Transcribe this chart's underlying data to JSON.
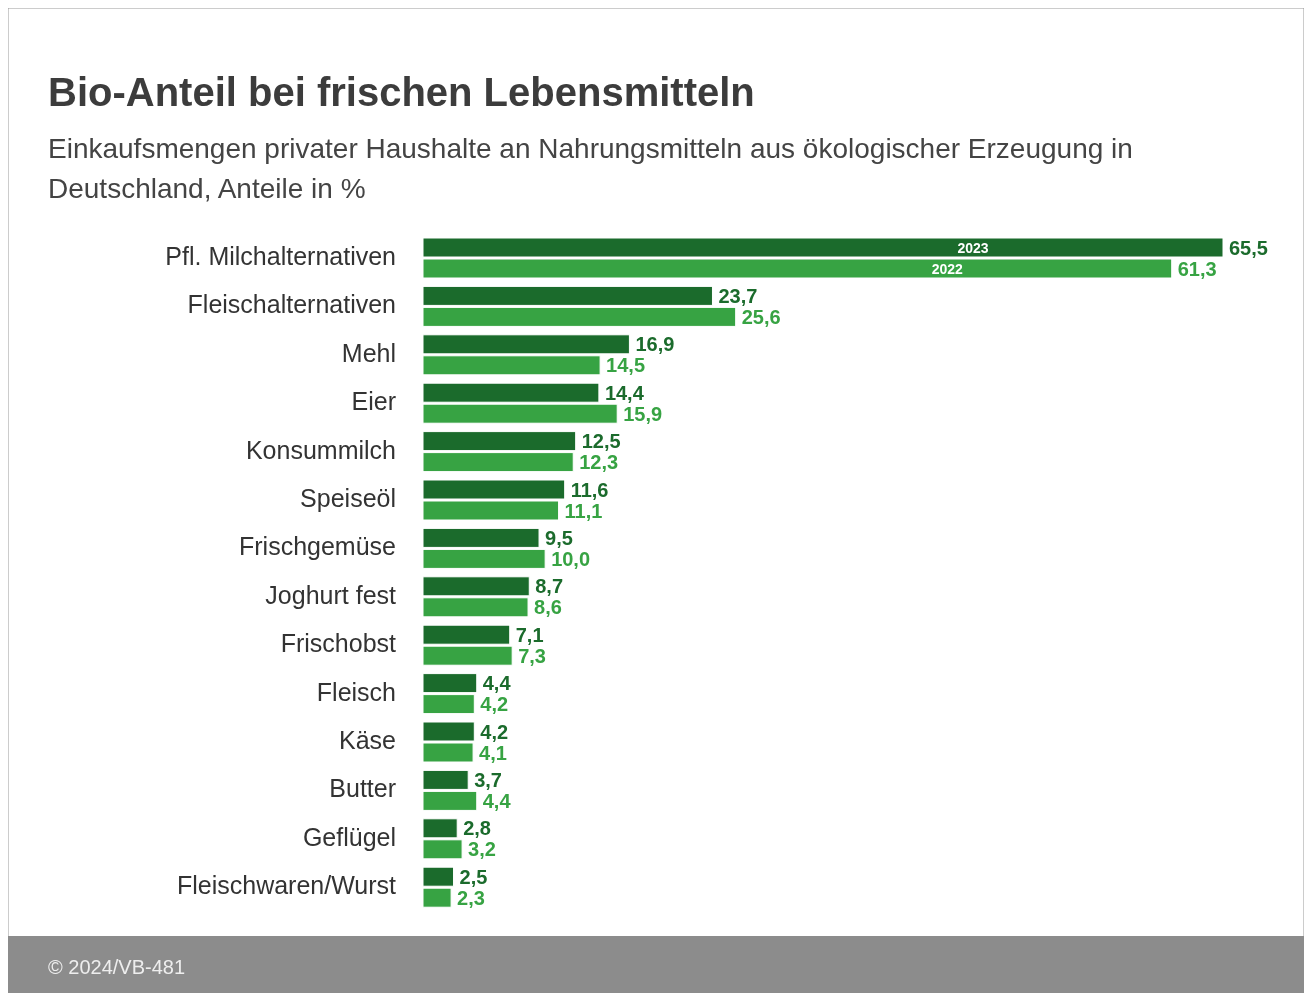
{
  "chart_data": {
    "type": "bar",
    "orientation": "horizontal",
    "title": "Bio-Anteil bei frischen Lebensmitteln",
    "subtitle": "Einkaufsmengen privater Haushalte an Nahrungsmitteln aus ökologischer Erzeugung in Deutschland, Anteile in %",
    "categories": [
      "Pfl. Milchalternativen",
      "Fleischalternativen",
      "Mehl",
      "Eier",
      "Konsummilch",
      "Speiseöl",
      "Frischgemüse",
      "Joghurt fest",
      "Frischobst",
      "Fleisch",
      "Käse",
      "Butter",
      "Geflügel",
      "Fleischwaren/Wurst"
    ],
    "series": [
      {
        "name": "2023",
        "color": "#1b6b2c",
        "values": [
          65.5,
          23.7,
          16.9,
          14.4,
          12.5,
          11.6,
          9.5,
          8.7,
          7.1,
          4.4,
          4.2,
          3.7,
          2.8,
          2.5
        ],
        "value_labels": [
          "65,5",
          "23,7",
          "16,9",
          "14,4",
          "12,5",
          "11,6",
          "9,5",
          "8,7",
          "7,1",
          "4,4",
          "4,2",
          "3,7",
          "2,8",
          "2,5"
        ]
      },
      {
        "name": "2022",
        "color": "#37a343",
        "values": [
          61.3,
          25.6,
          14.5,
          15.9,
          12.3,
          11.1,
          10.0,
          8.6,
          7.3,
          4.2,
          4.1,
          4.4,
          3.2,
          2.3
        ],
        "value_labels": [
          "61,3",
          "25,6",
          "14,5",
          "15,9",
          "12,3",
          "11,1",
          "10,0",
          "8,6",
          "7,3",
          "4,2",
          "4,1",
          "4,4",
          "3,2",
          "2,3"
        ]
      }
    ],
    "annotations": [
      "© 2024/VB-481"
    ]
  }
}
